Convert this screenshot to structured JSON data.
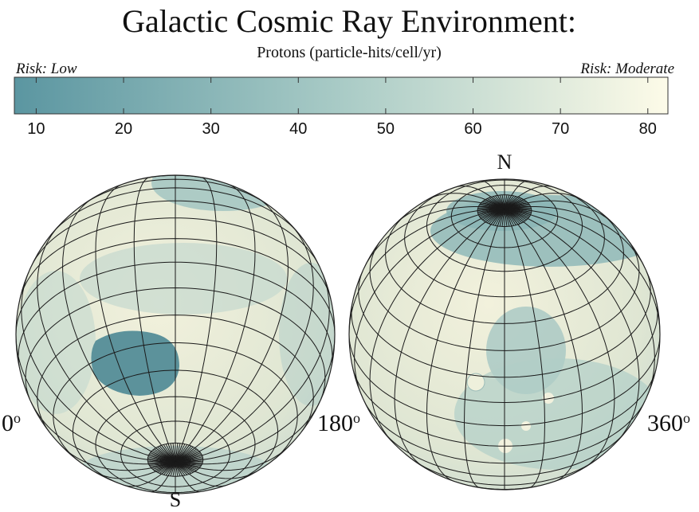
{
  "header": {
    "title": "Galactic Cosmic Ray Environment:",
    "subtitle": "Protons (particle-hits/cell/yr)"
  },
  "colorbar": {
    "low_label": "Risk: Low",
    "high_label": "Risk: Moderate",
    "range": [
      7.5,
      82.3
    ],
    "ticks": [
      10,
      20,
      30,
      40,
      50,
      60,
      70,
      80
    ],
    "colors": [
      "#5b96a1",
      "#a9cbc6",
      "#fdfbe8"
    ]
  },
  "globes": [
    {
      "pole_label": "S",
      "left_label": "0",
      "right_label": "180"
    },
    {
      "pole_label": "N",
      "right_label": "360"
    }
  ],
  "degree_mark": "o"
}
